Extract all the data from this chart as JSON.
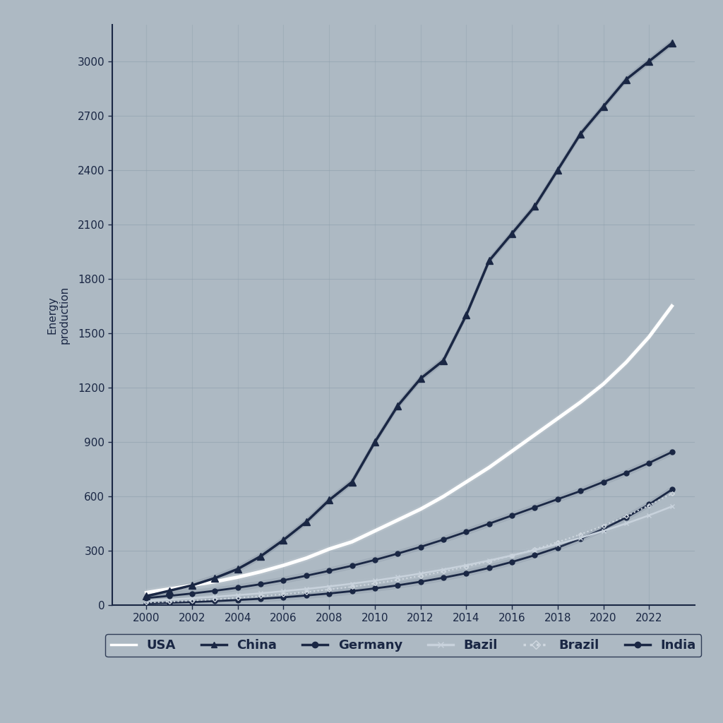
{
  "title": "",
  "ylabel": "Energy\nproduction",
  "xlabel": "",
  "background_color": "#adb9c3",
  "plot_background": "#adb9c3",
  "grid_color": "#8fa0ae",
  "years": [
    2000,
    2001,
    2002,
    2003,
    2004,
    2005,
    2006,
    2007,
    2008,
    2009,
    2010,
    2011,
    2012,
    2013,
    2014,
    2015,
    2016,
    2017,
    2018,
    2019,
    2020,
    2021,
    2022,
    2023
  ],
  "series": {
    "China": {
      "values": [
        50,
        80,
        110,
        150,
        200,
        270,
        360,
        460,
        580,
        680,
        900,
        1100,
        1250,
        1350,
        1600,
        1900,
        2050,
        2200,
        2400,
        2600,
        2750,
        2900,
        3000,
        3100
      ],
      "color": "#1a2744",
      "linewidth": 2.5,
      "linestyle": "-",
      "marker": "^",
      "markersize": 7,
      "zorder": 10
    },
    "USA": {
      "values": [
        70,
        90,
        110,
        130,
        155,
        185,
        220,
        260,
        310,
        350,
        410,
        470,
        530,
        600,
        680,
        760,
        850,
        940,
        1030,
        1120,
        1220,
        1340,
        1480,
        1650
      ],
      "color": "#ffffff",
      "linewidth": 3.5,
      "linestyle": "-",
      "marker": null,
      "markersize": 0,
      "zorder": 9
    },
    "Germany": {
      "values": [
        40,
        52,
        65,
        80,
        97,
        116,
        138,
        163,
        190,
        218,
        250,
        285,
        322,
        362,
        405,
        450,
        495,
        540,
        585,
        630,
        680,
        730,
        785,
        845
      ],
      "color": "#1a2744",
      "linewidth": 2.0,
      "linestyle": "-",
      "marker": "o",
      "markersize": 5,
      "zorder": 8
    },
    "Bazil": {
      "values": [
        25,
        32,
        39,
        47,
        56,
        66,
        78,
        90,
        104,
        119,
        136,
        155,
        175,
        197,
        221,
        247,
        275,
        305,
        337,
        372,
        410,
        451,
        496,
        545
      ],
      "color": "#c8d2dc",
      "linewidth": 1.8,
      "linestyle": "-",
      "marker": "x",
      "markersize": 5,
      "zorder": 7
    },
    "Brazil": {
      "values": [
        15,
        20,
        26,
        33,
        41,
        50,
        61,
        73,
        87,
        102,
        120,
        140,
        162,
        186,
        213,
        242,
        274,
        309,
        348,
        391,
        439,
        492,
        551,
        616
      ],
      "color": "#d0d8e0",
      "linewidth": 1.5,
      "linestyle": ":",
      "marker": "D",
      "markersize": 3,
      "zorder": 6
    },
    "India": {
      "values": [
        10,
        14,
        18,
        23,
        29,
        36,
        44,
        54,
        65,
        78,
        93,
        110,
        130,
        152,
        177,
        206,
        239,
        276,
        318,
        366,
        421,
        484,
        556,
        638
      ],
      "color": "#1a2744",
      "linewidth": 2.0,
      "linestyle": "-",
      "marker": "o",
      "markersize": 5,
      "zorder": 5
    }
  },
  "ylim": [
    0,
    3200
  ],
  "xlim": [
    1998.5,
    2024
  ],
  "ytick_step": 300,
  "legend_entries": [
    "USA",
    "China",
    "Germany",
    "Bazil",
    "Brazil",
    "India"
  ],
  "legend_colors": [
    "#ffffff",
    "#1a2744",
    "#1a2744",
    "#c8d2dc",
    "#d0d8e0",
    "#1a2744"
  ],
  "legend_styles": [
    "-",
    "-",
    "-",
    "-",
    ":",
    "-"
  ],
  "legend_markers": [
    null,
    "^",
    "o",
    "x",
    "D",
    "o"
  ],
  "title_fontsize": 0,
  "axis_fontsize": 11,
  "tick_fontsize": 11,
  "legend_fontsize": 13
}
